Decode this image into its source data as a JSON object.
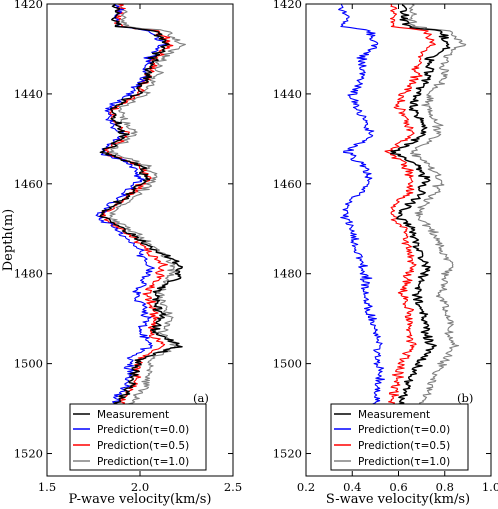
{
  "chart_data": [
    {
      "type": "line",
      "panel_label": "(a)",
      "xlabel": "P-wave velocity(km/s)",
      "ylabel": "Depth(m)",
      "xlim": [
        1.5,
        2.5
      ],
      "ylim": [
        1420,
        1525
      ],
      "y_inverted": true,
      "xticks": [
        "1.5",
        "2.0",
        "2.5"
      ],
      "yticks": [
        "1420",
        "1440",
        "1460",
        "1480",
        "1500",
        "1520"
      ],
      "legend_location": "bottom-right",
      "anchor_depths": [
        1420,
        1425,
        1426,
        1429,
        1432,
        1436,
        1440,
        1443,
        1446,
        1449,
        1453,
        1456,
        1459,
        1462,
        1465,
        1467,
        1470,
        1474,
        1478,
        1481,
        1484,
        1488,
        1490,
        1493,
        1496,
        1499,
        1502,
        1505,
        1509,
        1511
      ],
      "series": [
        {
          "name": "Measurement",
          "color": "#000000",
          "values": [
            1.88,
            1.88,
            2.08,
            2.15,
            2.07,
            2.04,
            1.98,
            1.85,
            1.86,
            1.92,
            1.8,
            2.0,
            2.03,
            1.95,
            1.85,
            1.78,
            1.9,
            2.05,
            2.22,
            2.2,
            2.08,
            2.1,
            2.12,
            2.07,
            2.22,
            2.0,
            1.97,
            1.95,
            1.88,
            1.82
          ]
        },
        {
          "name": "Prediction(τ=0.0)",
          "color": "#0000ff",
          "values": [
            1.88,
            1.88,
            2.06,
            2.12,
            2.05,
            2.02,
            1.95,
            1.83,
            1.84,
            1.9,
            1.79,
            1.97,
            2.0,
            1.92,
            1.83,
            1.77,
            1.87,
            1.98,
            2.05,
            2.04,
            1.98,
            2.02,
            2.04,
            2.0,
            2.05,
            1.95,
            1.94,
            1.92,
            1.86,
            1.82
          ]
        },
        {
          "name": "Prediction(τ=0.5)",
          "color": "#ff0000",
          "values": [
            1.89,
            1.89,
            2.1,
            2.16,
            2.08,
            2.05,
            1.99,
            1.86,
            1.87,
            1.93,
            1.81,
            2.0,
            2.04,
            1.96,
            1.86,
            1.79,
            1.9,
            2.02,
            2.12,
            2.1,
            2.04,
            2.07,
            2.09,
            2.05,
            2.12,
            2.0,
            1.98,
            1.97,
            1.9,
            1.86
          ]
        },
        {
          "name": "Prediction(τ=1.0)",
          "color": "#808080",
          "values": [
            1.91,
            1.91,
            2.14,
            2.22,
            2.12,
            2.09,
            2.03,
            1.9,
            1.91,
            1.97,
            1.84,
            2.04,
            2.08,
            2.0,
            1.9,
            1.83,
            1.95,
            2.08,
            2.18,
            2.16,
            2.1,
            2.14,
            2.16,
            2.12,
            2.2,
            2.06,
            2.04,
            2.03,
            1.95,
            1.9
          ]
        }
      ]
    },
    {
      "type": "line",
      "panel_label": "(b)",
      "xlabel": "S-wave velocity(km/s)",
      "ylabel": "",
      "xlim": [
        0.2,
        1.0
      ],
      "ylim": [
        1420,
        1525
      ],
      "y_inverted": true,
      "xticks": [
        "0.2",
        "0.4",
        "0.6",
        "0.8",
        "1.0"
      ],
      "yticks": [
        "1420",
        "1440",
        "1460",
        "1480",
        "1500",
        "1520"
      ],
      "legend_location": "bottom-right",
      "anchor_depths": [
        1420,
        1425,
        1426,
        1429,
        1432,
        1436,
        1440,
        1443,
        1446,
        1449,
        1453,
        1456,
        1459,
        1462,
        1465,
        1467,
        1470,
        1474,
        1478,
        1481,
        1484,
        1488,
        1490,
        1493,
        1496,
        1499,
        1502,
        1505,
        1509,
        1511
      ],
      "series": [
        {
          "name": "Measurement",
          "color": "#000000",
          "values": [
            0.62,
            0.63,
            0.78,
            0.82,
            0.74,
            0.73,
            0.68,
            0.66,
            0.7,
            0.72,
            0.58,
            0.68,
            0.72,
            0.7,
            0.64,
            0.6,
            0.66,
            0.68,
            0.72,
            0.7,
            0.68,
            0.7,
            0.72,
            0.72,
            0.74,
            0.7,
            0.66,
            0.64,
            0.6,
            0.58
          ]
        },
        {
          "name": "Prediction(τ=0.0)",
          "color": "#0000ff",
          "values": [
            0.36,
            0.37,
            0.48,
            0.5,
            0.44,
            0.45,
            0.4,
            0.42,
            0.45,
            0.48,
            0.38,
            0.45,
            0.48,
            0.44,
            0.37,
            0.36,
            0.4,
            0.42,
            0.44,
            0.46,
            0.45,
            0.47,
            0.48,
            0.5,
            0.52,
            0.5,
            0.52,
            0.51,
            0.5,
            0.5
          ]
        },
        {
          "name": "Prediction(τ=0.5)",
          "color": "#ff0000",
          "values": [
            0.58,
            0.58,
            0.72,
            0.76,
            0.68,
            0.68,
            0.62,
            0.6,
            0.64,
            0.66,
            0.56,
            0.63,
            0.66,
            0.64,
            0.58,
            0.57,
            0.62,
            0.64,
            0.66,
            0.64,
            0.62,
            0.64,
            0.65,
            0.64,
            0.66,
            0.62,
            0.6,
            0.59,
            0.57,
            0.55
          ]
        },
        {
          "name": "Prediction(τ=1.0)",
          "color": "#808080",
          "values": [
            0.66,
            0.66,
            0.82,
            0.88,
            0.8,
            0.8,
            0.74,
            0.72,
            0.76,
            0.78,
            0.66,
            0.74,
            0.78,
            0.76,
            0.7,
            0.68,
            0.74,
            0.78,
            0.82,
            0.8,
            0.78,
            0.8,
            0.82,
            0.82,
            0.84,
            0.8,
            0.76,
            0.74,
            0.7,
            0.68
          ]
        }
      ]
    }
  ]
}
